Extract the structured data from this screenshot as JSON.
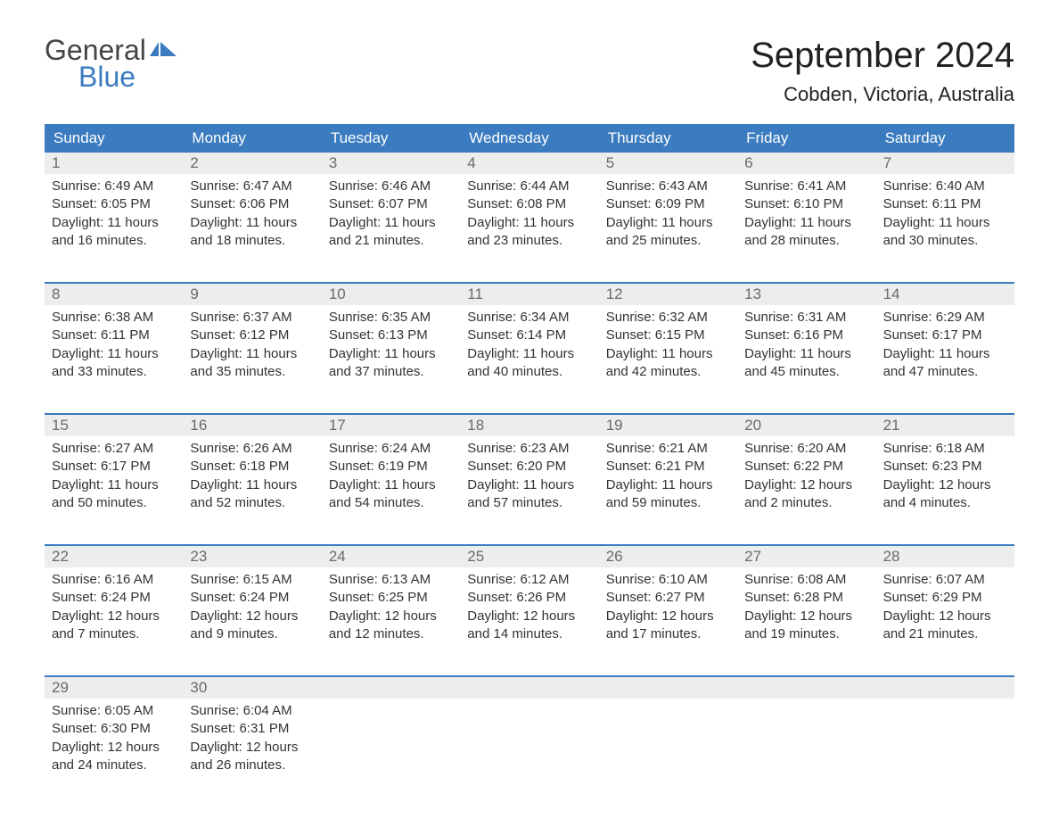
{
  "logo": {
    "top": "General",
    "bottom": "Blue"
  },
  "title": "September 2024",
  "location": "Cobden, Victoria, Australia",
  "colors": {
    "brand": "#3b7bbf",
    "header_bg": "#3b7bbf",
    "header_text": "#ffffff",
    "daynum_bg": "#eceded",
    "daynum_text": "#6a6a6a",
    "body_text": "#333333",
    "background": "#ffffff"
  },
  "day_names": [
    "Sunday",
    "Monday",
    "Tuesday",
    "Wednesday",
    "Thursday",
    "Friday",
    "Saturday"
  ],
  "weeks": [
    [
      {
        "n": "1",
        "sunrise": "6:49 AM",
        "sunset": "6:05 PM",
        "dl1": "11 hours",
        "dl2": "and 16 minutes."
      },
      {
        "n": "2",
        "sunrise": "6:47 AM",
        "sunset": "6:06 PM",
        "dl1": "11 hours",
        "dl2": "and 18 minutes."
      },
      {
        "n": "3",
        "sunrise": "6:46 AM",
        "sunset": "6:07 PM",
        "dl1": "11 hours",
        "dl2": "and 21 minutes."
      },
      {
        "n": "4",
        "sunrise": "6:44 AM",
        "sunset": "6:08 PM",
        "dl1": "11 hours",
        "dl2": "and 23 minutes."
      },
      {
        "n": "5",
        "sunrise": "6:43 AM",
        "sunset": "6:09 PM",
        "dl1": "11 hours",
        "dl2": "and 25 minutes."
      },
      {
        "n": "6",
        "sunrise": "6:41 AM",
        "sunset": "6:10 PM",
        "dl1": "11 hours",
        "dl2": "and 28 minutes."
      },
      {
        "n": "7",
        "sunrise": "6:40 AM",
        "sunset": "6:11 PM",
        "dl1": "11 hours",
        "dl2": "and 30 minutes."
      }
    ],
    [
      {
        "n": "8",
        "sunrise": "6:38 AM",
        "sunset": "6:11 PM",
        "dl1": "11 hours",
        "dl2": "and 33 minutes."
      },
      {
        "n": "9",
        "sunrise": "6:37 AM",
        "sunset": "6:12 PM",
        "dl1": "11 hours",
        "dl2": "and 35 minutes."
      },
      {
        "n": "10",
        "sunrise": "6:35 AM",
        "sunset": "6:13 PM",
        "dl1": "11 hours",
        "dl2": "and 37 minutes."
      },
      {
        "n": "11",
        "sunrise": "6:34 AM",
        "sunset": "6:14 PM",
        "dl1": "11 hours",
        "dl2": "and 40 minutes."
      },
      {
        "n": "12",
        "sunrise": "6:32 AM",
        "sunset": "6:15 PM",
        "dl1": "11 hours",
        "dl2": "and 42 minutes."
      },
      {
        "n": "13",
        "sunrise": "6:31 AM",
        "sunset": "6:16 PM",
        "dl1": "11 hours",
        "dl2": "and 45 minutes."
      },
      {
        "n": "14",
        "sunrise": "6:29 AM",
        "sunset": "6:17 PM",
        "dl1": "11 hours",
        "dl2": "and 47 minutes."
      }
    ],
    [
      {
        "n": "15",
        "sunrise": "6:27 AM",
        "sunset": "6:17 PM",
        "dl1": "11 hours",
        "dl2": "and 50 minutes."
      },
      {
        "n": "16",
        "sunrise": "6:26 AM",
        "sunset": "6:18 PM",
        "dl1": "11 hours",
        "dl2": "and 52 minutes."
      },
      {
        "n": "17",
        "sunrise": "6:24 AM",
        "sunset": "6:19 PM",
        "dl1": "11 hours",
        "dl2": "and 54 minutes."
      },
      {
        "n": "18",
        "sunrise": "6:23 AM",
        "sunset": "6:20 PM",
        "dl1": "11 hours",
        "dl2": "and 57 minutes."
      },
      {
        "n": "19",
        "sunrise": "6:21 AM",
        "sunset": "6:21 PM",
        "dl1": "11 hours",
        "dl2": "and 59 minutes."
      },
      {
        "n": "20",
        "sunrise": "6:20 AM",
        "sunset": "6:22 PM",
        "dl1": "12 hours",
        "dl2": "and 2 minutes."
      },
      {
        "n": "21",
        "sunrise": "6:18 AM",
        "sunset": "6:23 PM",
        "dl1": "12 hours",
        "dl2": "and 4 minutes."
      }
    ],
    [
      {
        "n": "22",
        "sunrise": "6:16 AM",
        "sunset": "6:24 PM",
        "dl1": "12 hours",
        "dl2": "and 7 minutes."
      },
      {
        "n": "23",
        "sunrise": "6:15 AM",
        "sunset": "6:24 PM",
        "dl1": "12 hours",
        "dl2": "and 9 minutes."
      },
      {
        "n": "24",
        "sunrise": "6:13 AM",
        "sunset": "6:25 PM",
        "dl1": "12 hours",
        "dl2": "and 12 minutes."
      },
      {
        "n": "25",
        "sunrise": "6:12 AM",
        "sunset": "6:26 PM",
        "dl1": "12 hours",
        "dl2": "and 14 minutes."
      },
      {
        "n": "26",
        "sunrise": "6:10 AM",
        "sunset": "6:27 PM",
        "dl1": "12 hours",
        "dl2": "and 17 minutes."
      },
      {
        "n": "27",
        "sunrise": "6:08 AM",
        "sunset": "6:28 PM",
        "dl1": "12 hours",
        "dl2": "and 19 minutes."
      },
      {
        "n": "28",
        "sunrise": "6:07 AM",
        "sunset": "6:29 PM",
        "dl1": "12 hours",
        "dl2": "and 21 minutes."
      }
    ],
    [
      {
        "n": "29",
        "sunrise": "6:05 AM",
        "sunset": "6:30 PM",
        "dl1": "12 hours",
        "dl2": "and 24 minutes."
      },
      {
        "n": "30",
        "sunrise": "6:04 AM",
        "sunset": "6:31 PM",
        "dl1": "12 hours",
        "dl2": "and 26 minutes."
      },
      null,
      null,
      null,
      null,
      null
    ]
  ],
  "labels": {
    "sunrise": "Sunrise: ",
    "sunset": "Sunset: ",
    "daylight": "Daylight: "
  }
}
